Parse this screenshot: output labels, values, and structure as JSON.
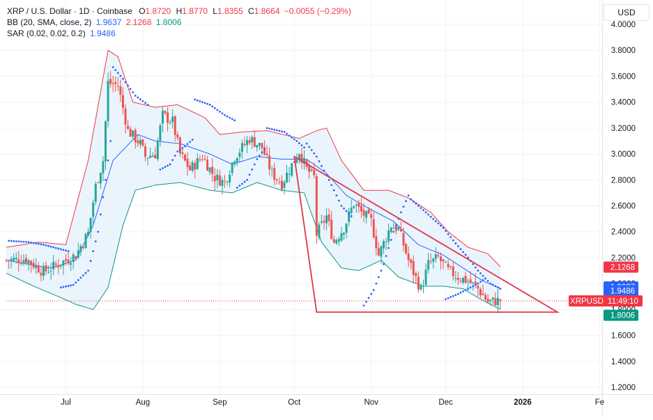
{
  "header": {
    "symbol": "XRP / U.S. Dollar · 1D · Coinbase",
    "o_label": "O",
    "o_value": "1.8720",
    "h_label": "H",
    "h_value": "1.8770",
    "l_label": "L",
    "l_value": "1.8355",
    "c_label": "C",
    "c_value": "1.8664",
    "change": "−0.0055 (−0.29%)"
  },
  "indicators": {
    "bb": {
      "label": "BB (20, SMA, close, 2)",
      "basis": "1.9637",
      "upper": "2.1268",
      "lower": "1.8006"
    },
    "sar": {
      "label": "SAR (0.02, 0.02, 0.2)",
      "value": "1.9486"
    }
  },
  "currency_button": "USD",
  "price_tags": {
    "upper": "2.1268",
    "basis": "1.9637",
    "sar": "1.9486",
    "symbol": "XRPUSD",
    "countdown": "11:49:10",
    "lower": "1.8006"
  },
  "colors": {
    "up": "#26a69a",
    "down": "#ef5350",
    "bb_basis": "#2962ff",
    "bb_upper": "#f23645",
    "bb_lower": "#089981",
    "bb_fill": "#e3f0fb",
    "sar": "#2962ff",
    "trendline": "#e0364b"
  },
  "chart_data": {
    "type": "candlestick",
    "ylim": [
      1.15,
      4.05
    ],
    "y_ticks": [
      "4.0000",
      "3.8000",
      "3.6000",
      "3.4000",
      "3.2000",
      "3.0000",
      "2.8000",
      "2.6000",
      "2.4000",
      "2.2000",
      "2.0000",
      "1.8000",
      "1.6000",
      "1.4000",
      "1.2000"
    ],
    "x_ticks": [
      "Jul",
      "Aug",
      "Sep",
      "Oct",
      "Nov",
      "Dec",
      "2026",
      "Fe"
    ],
    "x_range": [
      "2025-06-07",
      "2026-02-02"
    ],
    "last_close": 1.8664,
    "ohlc_anchors": [
      [
        "2025-06-07",
        2.18,
        2.22
      ],
      [
        "2025-06-15",
        2.19,
        2.12
      ],
      [
        "2025-06-22",
        2.09,
        2.0
      ],
      [
        "2025-06-29",
        2.16,
        2.2
      ],
      [
        "2025-07-05",
        2.22,
        2.25
      ],
      [
        "2025-07-10",
        2.39,
        2.45
      ],
      [
        "2025-07-13",
        2.75,
        2.8
      ],
      [
        "2025-07-16",
        2.95,
        3.0
      ],
      [
        "2025-07-18",
        3.55,
        3.45
      ],
      [
        "2025-07-22",
        3.53,
        3.4
      ],
      [
        "2025-07-26",
        3.18,
        3.2
      ],
      [
        "2025-07-31",
        3.08,
        3.05
      ],
      [
        "2025-08-02",
        2.98,
        2.75
      ],
      [
        "2025-08-06",
        3.0,
        3.02
      ],
      [
        "2025-08-09",
        3.3,
        3.35
      ],
      [
        "2025-08-13",
        3.25,
        3.2
      ],
      [
        "2025-08-16",
        3.0,
        3.1
      ],
      [
        "2025-08-20",
        2.88,
        2.85
      ],
      [
        "2025-08-25",
        2.98,
        2.95
      ],
      [
        "2025-08-30",
        2.82,
        2.8
      ],
      [
        "2025-09-03",
        2.78,
        2.82
      ],
      [
        "2025-09-07",
        2.98,
        3.0
      ],
      [
        "2025-09-13",
        3.12,
        3.15
      ],
      [
        "2025-09-18",
        3.05,
        3.05
      ],
      [
        "2025-09-22",
        2.85,
        2.82
      ],
      [
        "2025-09-26",
        2.77,
        2.78
      ],
      [
        "2025-09-29",
        2.88,
        2.85
      ],
      [
        "2025-10-03",
        3.02,
        3.0
      ],
      [
        "2025-10-06",
        2.88,
        2.85
      ],
      [
        "2025-10-09",
        2.82,
        2.8
      ],
      [
        "2025-10-10",
        2.38,
        2.35
      ],
      [
        "2025-10-14",
        2.52,
        2.55
      ],
      [
        "2025-10-17",
        2.32,
        2.3
      ],
      [
        "2025-10-21",
        2.43,
        2.45
      ],
      [
        "2025-10-25",
        2.62,
        2.65
      ],
      [
        "2025-10-28",
        2.55,
        2.5
      ],
      [
        "2025-11-01",
        2.48,
        2.5
      ],
      [
        "2025-11-04",
        2.22,
        2.2
      ],
      [
        "2025-11-09",
        2.45,
        2.48
      ],
      [
        "2025-11-12",
        2.42,
        2.4
      ],
      [
        "2025-11-16",
        2.18,
        2.15
      ],
      [
        "2025-11-21",
        1.95,
        1.93
      ],
      [
        "2025-11-24",
        2.15,
        2.2
      ],
      [
        "2025-11-28",
        2.2,
        2.18
      ],
      [
        "2025-12-02",
        2.1,
        2.1
      ],
      [
        "2025-12-06",
        2.05,
        2.04
      ],
      [
        "2025-12-10",
        2.02,
        2.04
      ],
      [
        "2025-12-14",
        1.96,
        1.95
      ],
      [
        "2025-12-18",
        1.86,
        1.88
      ],
      [
        "2025-12-23",
        1.87,
        1.8664
      ]
    ],
    "bollinger_upper_anchors": [
      [
        "2025-06-07",
        2.28
      ],
      [
        "2025-06-20",
        2.32
      ],
      [
        "2025-07-01",
        2.3
      ],
      [
        "2025-07-10",
        2.95
      ],
      [
        "2025-07-18",
        3.8
      ],
      [
        "2025-07-22",
        3.75
      ],
      [
        "2025-07-28",
        3.4
      ],
      [
        "2025-08-06",
        3.36
      ],
      [
        "2025-08-15",
        3.38
      ],
      [
        "2025-08-26",
        3.28
      ],
      [
        "2025-09-01",
        3.15
      ],
      [
        "2025-09-10",
        3.17
      ],
      [
        "2025-09-20",
        3.18
      ],
      [
        "2025-10-03",
        3.12
      ],
      [
        "2025-10-10",
        3.18
      ],
      [
        "2025-10-14",
        3.2
      ],
      [
        "2025-10-20",
        2.95
      ],
      [
        "2025-10-29",
        2.72
      ],
      [
        "2025-11-08",
        2.72
      ],
      [
        "2025-11-16",
        2.66
      ],
      [
        "2025-11-25",
        2.55
      ],
      [
        "2025-12-02",
        2.4
      ],
      [
        "2025-12-10",
        2.28
      ],
      [
        "2025-12-18",
        2.23
      ],
      [
        "2025-12-23",
        2.13
      ]
    ],
    "bollinger_basis_anchors": [
      [
        "2025-06-07",
        2.18
      ],
      [
        "2025-06-25",
        2.12
      ],
      [
        "2025-07-05",
        2.18
      ],
      [
        "2025-07-12",
        2.45
      ],
      [
        "2025-07-20",
        2.95
      ],
      [
        "2025-07-30",
        3.15
      ],
      [
        "2025-08-06",
        3.1
      ],
      [
        "2025-08-16",
        3.08
      ],
      [
        "2025-08-28",
        3.0
      ],
      [
        "2025-09-06",
        2.92
      ],
      [
        "2025-09-16",
        2.98
      ],
      [
        "2025-09-26",
        2.96
      ],
      [
        "2025-10-06",
        2.96
      ],
      [
        "2025-10-14",
        2.85
      ],
      [
        "2025-10-22",
        2.68
      ],
      [
        "2025-10-31",
        2.58
      ],
      [
        "2025-11-10",
        2.48
      ],
      [
        "2025-11-20",
        2.3
      ],
      [
        "2025-11-30",
        2.22
      ],
      [
        "2025-12-08",
        2.12
      ],
      [
        "2025-12-16",
        2.02
      ],
      [
        "2025-12-23",
        1.9637
      ]
    ],
    "bollinger_lower_anchors": [
      [
        "2025-06-07",
        2.08
      ],
      [
        "2025-06-18",
        1.98
      ],
      [
        "2025-06-28",
        1.9
      ],
      [
        "2025-07-05",
        1.84
      ],
      [
        "2025-07-12",
        1.8
      ],
      [
        "2025-07-18",
        1.97
      ],
      [
        "2025-07-24",
        2.45
      ],
      [
        "2025-07-29",
        2.72
      ],
      [
        "2025-08-06",
        2.76
      ],
      [
        "2025-08-16",
        2.78
      ],
      [
        "2025-08-28",
        2.72
      ],
      [
        "2025-09-06",
        2.7
      ],
      [
        "2025-09-16",
        2.78
      ],
      [
        "2025-09-26",
        2.72
      ],
      [
        "2025-10-05",
        2.7
      ],
      [
        "2025-10-12",
        2.32
      ],
      [
        "2025-10-20",
        2.12
      ],
      [
        "2025-10-27",
        2.1
      ],
      [
        "2025-11-05",
        2.18
      ],
      [
        "2025-11-12",
        2.05
      ],
      [
        "2025-11-22",
        1.98
      ],
      [
        "2025-11-30",
        1.98
      ],
      [
        "2025-12-08",
        1.96
      ],
      [
        "2025-12-15",
        1.88
      ],
      [
        "2025-12-23",
        1.8006
      ]
    ],
    "sar_segments": [
      [
        [
          "2025-06-08",
          2.33
        ],
        [
          "2025-06-16",
          2.32
        ],
        [
          "2025-06-22",
          2.3
        ],
        [
          "2025-06-28",
          2.27
        ],
        [
          "2025-07-02",
          2.25
        ]
      ],
      [
        [
          "2025-06-29",
          1.97
        ],
        [
          "2025-07-04",
          1.99
        ],
        [
          "2025-07-10",
          2.1
        ],
        [
          "2025-07-14",
          2.4
        ],
        [
          "2025-07-17",
          2.8
        ],
        [
          "2025-07-19",
          3.1
        ]
      ],
      [
        [
          "2025-07-20",
          3.67
        ],
        [
          "2025-07-24",
          3.58
        ],
        [
          "2025-07-29",
          3.45
        ],
        [
          "2025-08-03",
          3.38
        ]
      ],
      [
        [
          "2025-08-08",
          2.88
        ],
        [
          "2025-08-12",
          2.92
        ],
        [
          "2025-08-15",
          3.02
        ],
        [
          "2025-08-18",
          3.06
        ],
        [
          "2025-08-21",
          3.11
        ]
      ],
      [
        [
          "2025-08-22",
          3.42
        ],
        [
          "2025-08-28",
          3.38
        ],
        [
          "2025-09-03",
          3.3
        ],
        [
          "2025-09-07",
          3.26
        ]
      ],
      [
        [
          "2025-09-08",
          2.74
        ],
        [
          "2025-09-12",
          2.8
        ],
        [
          "2025-09-16",
          2.96
        ],
        [
          "2025-09-19",
          3.04
        ]
      ],
      [
        [
          "2025-09-20",
          3.2
        ],
        [
          "2025-09-27",
          3.17
        ],
        [
          "2025-10-02",
          3.1
        ],
        [
          "2025-10-05",
          3.05
        ]
      ],
      [
        [
          "2025-10-06",
          3.08
        ],
        [
          "2025-10-10",
          2.98
        ],
        [
          "2025-10-15",
          2.8
        ],
        [
          "2025-10-20",
          2.6
        ],
        [
          "2025-10-24",
          2.52
        ]
      ],
      [
        [
          "2025-10-29",
          1.83
        ],
        [
          "2025-11-02",
          1.95
        ],
        [
          "2025-11-06",
          2.15
        ],
        [
          "2025-11-10",
          2.4
        ],
        [
          "2025-11-13",
          2.55
        ],
        [
          "2025-11-16",
          2.68
        ]
      ],
      [
        [
          "2025-11-17",
          2.65
        ],
        [
          "2025-11-23",
          2.55
        ],
        [
          "2025-11-30",
          2.43
        ],
        [
          "2025-12-05",
          2.31
        ],
        [
          "2025-12-10",
          2.2
        ],
        [
          "2025-12-14",
          2.1
        ],
        [
          "2025-12-19",
          2.0
        ],
        [
          "2025-12-23",
          1.96
        ]
      ],
      [
        [
          "2025-12-01",
          1.88
        ],
        [
          "2025-12-06",
          1.92
        ],
        [
          "2025-12-10",
          1.96
        ],
        [
          "2025-12-14",
          2.0
        ],
        [
          "2025-12-17",
          2.04
        ]
      ]
    ],
    "triangle": [
      [
        "2025-10-01",
        2.98
      ],
      [
        "2026-01-15",
        1.78
      ],
      [
        "2025-10-10",
        1.78
      ]
    ]
  }
}
